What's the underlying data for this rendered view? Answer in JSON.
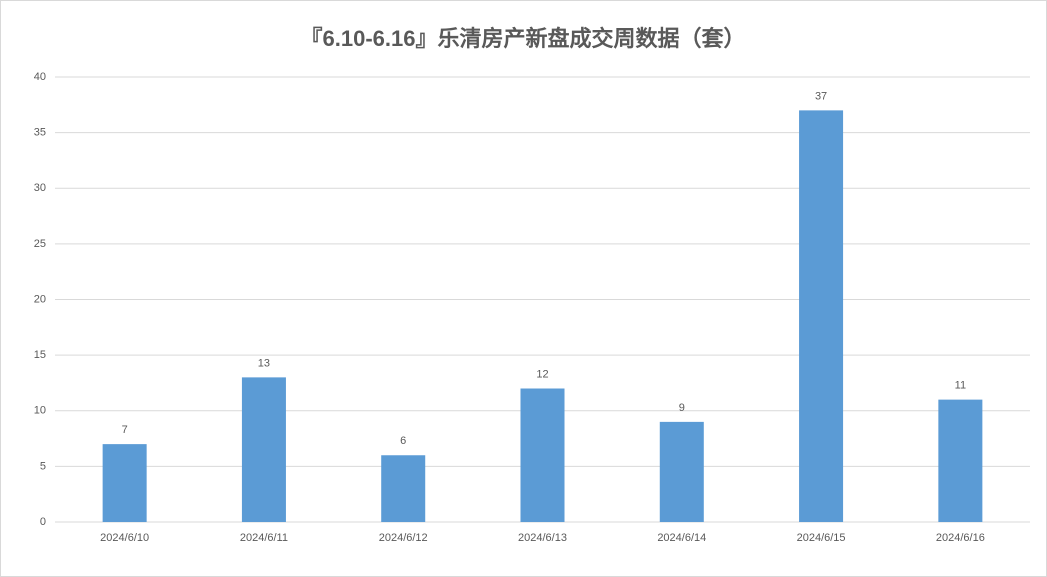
{
  "chart_data": {
    "type": "bar",
    "title": "『6.10-6.16』乐清房产新盘成交周数据（套）",
    "categories": [
      "2024/6/10",
      "2024/6/11",
      "2024/6/12",
      "2024/6/13",
      "2024/6/14",
      "2024/6/15",
      "2024/6/16"
    ],
    "values": [
      7,
      13,
      6,
      12,
      9,
      37,
      11
    ],
    "color": "#5b9bd5",
    "ylim": [
      0,
      40
    ],
    "yticks": [
      0,
      5,
      10,
      15,
      20,
      25,
      30,
      35,
      40
    ],
    "grid": true
  }
}
